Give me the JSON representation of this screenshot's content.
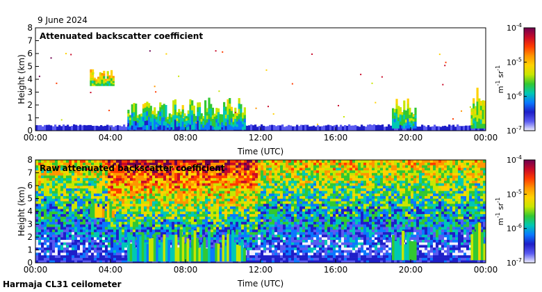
{
  "date_label": "9 June 2024",
  "instrument_label": "Harmaja CL31 ceilometer",
  "chart_data": [
    {
      "type": "heatmap",
      "title": "Attenuated backscatter coefficient",
      "xlabel": "Time (UTC)",
      "ylabel": "Height (km)",
      "x_ticks": [
        "00:00",
        "04:00",
        "08:00",
        "12:00",
        "16:00",
        "20:00",
        "00:00"
      ],
      "xlim_hours": [
        0,
        24
      ],
      "y_ticks": [
        "0",
        "1",
        "2",
        "3",
        "4",
        "5",
        "6",
        "7",
        "8"
      ],
      "ylim": [
        0,
        8
      ],
      "colorbar": {
        "scale": "log",
        "range": [
          1e-07,
          0.0001
        ],
        "ticks": [
          {
            "base": "10",
            "exp": "-7"
          },
          {
            "base": "10",
            "exp": "-6"
          },
          {
            "base": "10",
            "exp": "-5"
          },
          {
            "base": "10",
            "exp": "-4"
          }
        ],
        "unit_base": [
          "m",
          "sr"
        ],
        "unit_exp": [
          "-1",
          "-1"
        ],
        "colors": [
          "#f0f0ff",
          "#5a5af0",
          "#1e1ec8",
          "#0a78ff",
          "#00c8b4",
          "#32c832",
          "#c8e600",
          "#ffd200",
          "#ff9600",
          "#ff3c00",
          "#c80a28",
          "#6e0050"
        ]
      },
      "boundary_layer_km": 0.3,
      "features": [
        {
          "name": "elevated layer",
          "x_hours": [
            2.9,
            4.2
          ],
          "y_km": [
            3.5,
            4.8
          ],
          "log_value": -5.3
        },
        {
          "name": "cloud band morning",
          "x_hours": [
            4.9,
            7.3
          ],
          "y_km": [
            0.1,
            2.3
          ],
          "log_value": -5.8
        },
        {
          "name": "cloud band midday",
          "x_hours": [
            7.3,
            11.2
          ],
          "y_km": [
            0.1,
            2.6
          ],
          "log_value": -5.7
        },
        {
          "name": "evening cloud",
          "x_hours": [
            19.0,
            20.3
          ],
          "y_km": [
            0.2,
            2.6
          ],
          "log_value": -5.6
        },
        {
          "name": "late cloud",
          "x_hours": [
            23.2,
            24.0
          ],
          "y_km": [
            0.2,
            3.4
          ],
          "log_value": -5.4
        }
      ]
    },
    {
      "type": "heatmap",
      "title": "Raw attenuated backscatter coefficient",
      "xlabel": "Time (UTC)",
      "ylabel": "Height (km)",
      "x_ticks": [
        "00:00",
        "04:00",
        "08:00",
        "12:00",
        "16:00",
        "20:00",
        "00:00"
      ],
      "xlim_hours": [
        0,
        24
      ],
      "y_ticks": [
        "0",
        "1",
        "2",
        "3",
        "4",
        "5",
        "6",
        "7",
        "8"
      ],
      "ylim": [
        0,
        8
      ],
      "colorbar": {
        "scale": "log",
        "range": [
          1e-07,
          0.0001
        ],
        "ticks": [
          {
            "base": "10",
            "exp": "-7"
          },
          {
            "base": "10",
            "exp": "-6"
          },
          {
            "base": "10",
            "exp": "-5"
          },
          {
            "base": "10",
            "exp": "-4"
          }
        ],
        "unit_base": [
          "m",
          "sr"
        ],
        "unit_exp": [
          "-1",
          "-1"
        ]
      },
      "noisy_periods_hours": [
        [
          3.8,
          7.8
        ],
        [
          7.8,
          11.8
        ]
      ]
    }
  ]
}
